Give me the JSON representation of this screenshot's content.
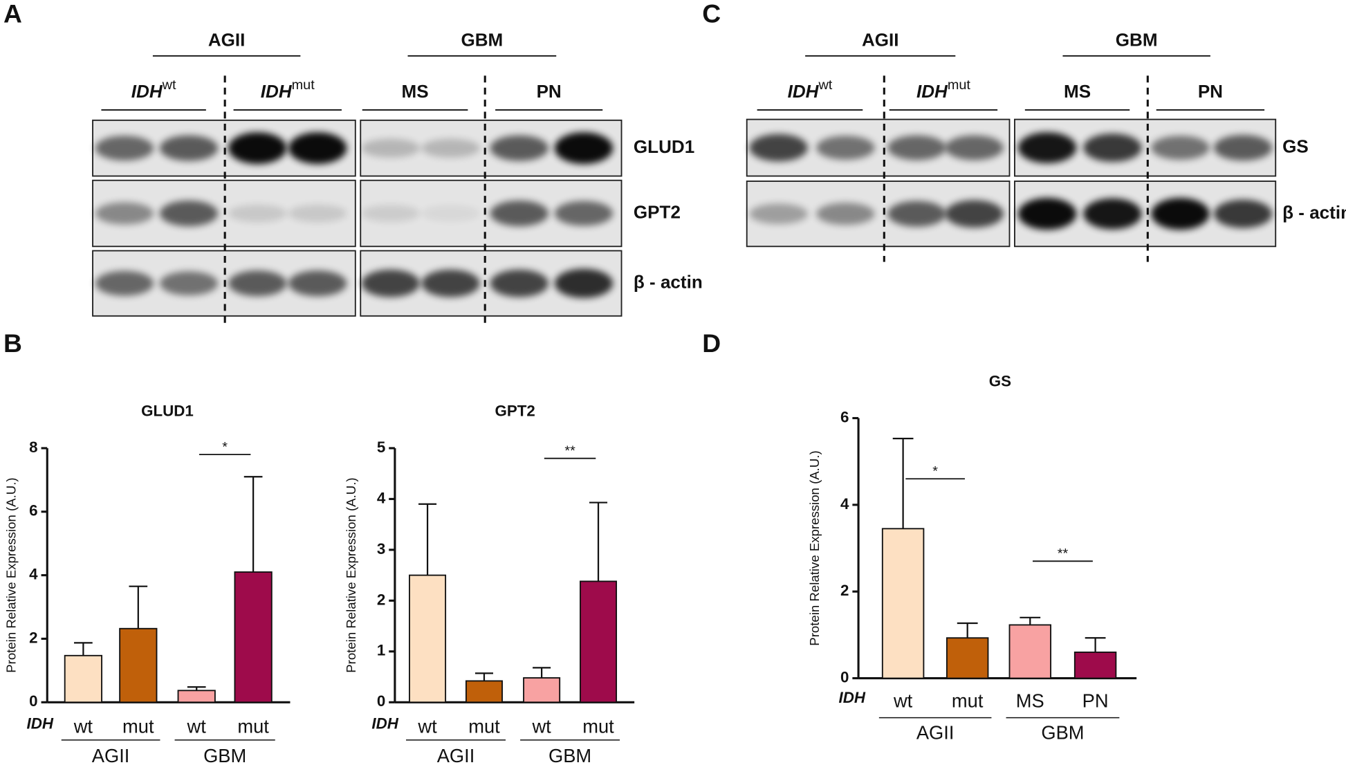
{
  "panel_labels": [
    "A",
    "B",
    "C",
    "D"
  ],
  "blots": [
    {
      "groups": [
        "AGII",
        "GBM"
      ],
      "subgroups": [
        {
          "base": "IDH",
          "sup": "wt"
        },
        {
          "base": "IDH",
          "sup": "mut"
        },
        {
          "text": "MS"
        },
        {
          "text": "PN"
        }
      ],
      "proteins": [
        "GLUD1",
        "GPT2",
        "β - actin"
      ]
    },
    {
      "groups": [
        "AGII",
        "GBM"
      ],
      "subgroups": [
        {
          "base": "IDH",
          "sup": "wt"
        },
        {
          "base": "IDH",
          "sup": "mut"
        },
        {
          "text": "MS"
        },
        {
          "text": "PN"
        }
      ],
      "proteins": [
        "GS",
        "β - actin"
      ]
    }
  ],
  "chart_data": [
    {
      "type": "bar",
      "title": "GLUD1",
      "y_label": "Protein Relative Expression (A.U.)",
      "x_prefix": "IDH",
      "categories": [
        "wt",
        "mut",
        "wt",
        "mut"
      ],
      "values": [
        1.47,
        2.32,
        0.37,
        4.1
      ],
      "errors": [
        0.4,
        1.33,
        0.11,
        3.0
      ],
      "colors": [
        "#fde0c2",
        "#c0600a",
        "#f8a2a2",
        "#9e0b4b"
      ],
      "ylim": [
        0,
        8
      ],
      "yticks": [
        0,
        2,
        4,
        6,
        8
      ],
      "groups": [
        {
          "label": "AGII",
          "from": 0,
          "to": 1
        },
        {
          "label": "GBM",
          "from": 2,
          "to": 3
        }
      ],
      "significance": [
        {
          "label": "*",
          "from": 2,
          "to": 3,
          "y": 7.8
        }
      ]
    },
    {
      "type": "bar",
      "title": "GPT2",
      "y_label": "Protein Relative Expression (A.U.)",
      "x_prefix": "IDH",
      "categories": [
        "wt",
        "mut",
        "wt",
        "mut"
      ],
      "values": [
        2.5,
        0.42,
        0.48,
        2.38
      ],
      "errors": [
        1.4,
        0.15,
        0.2,
        1.55
      ],
      "colors": [
        "#fde0c2",
        "#c0600a",
        "#f8a2a2",
        "#9e0b4b"
      ],
      "ylim": [
        0,
        5
      ],
      "yticks": [
        0,
        1,
        2,
        3,
        4,
        5
      ],
      "groups": [
        {
          "label": "AGII",
          "from": 0,
          "to": 1
        },
        {
          "label": "GBM",
          "from": 2,
          "to": 3
        }
      ],
      "significance": [
        {
          "label": "**",
          "from": 2,
          "to": 3,
          "y": 4.8
        }
      ]
    },
    {
      "type": "bar",
      "title": "GS",
      "y_label": "Protein Relative Expression (A.U.)",
      "x_prefix": "IDH",
      "categories": [
        "wt",
        "mut",
        "MS",
        "PN"
      ],
      "values": [
        3.45,
        0.93,
        1.23,
        0.6
      ],
      "errors": [
        2.08,
        0.34,
        0.17,
        0.33
      ],
      "colors": [
        "#fde0c2",
        "#c0600a",
        "#f8a2a2",
        "#9e0b4b"
      ],
      "ylim": [
        0,
        6
      ],
      "yticks": [
        0,
        2,
        4,
        6
      ],
      "groups": [
        {
          "label": "AGII",
          "from": 0,
          "to": 1
        },
        {
          "label": "GBM",
          "from": 2,
          "to": 3
        }
      ],
      "significance": [
        {
          "label": "*",
          "from": 0,
          "to": 1,
          "y": 4.6
        },
        {
          "label": "**",
          "from": 2,
          "to": 3,
          "y": 2.7
        }
      ]
    }
  ]
}
